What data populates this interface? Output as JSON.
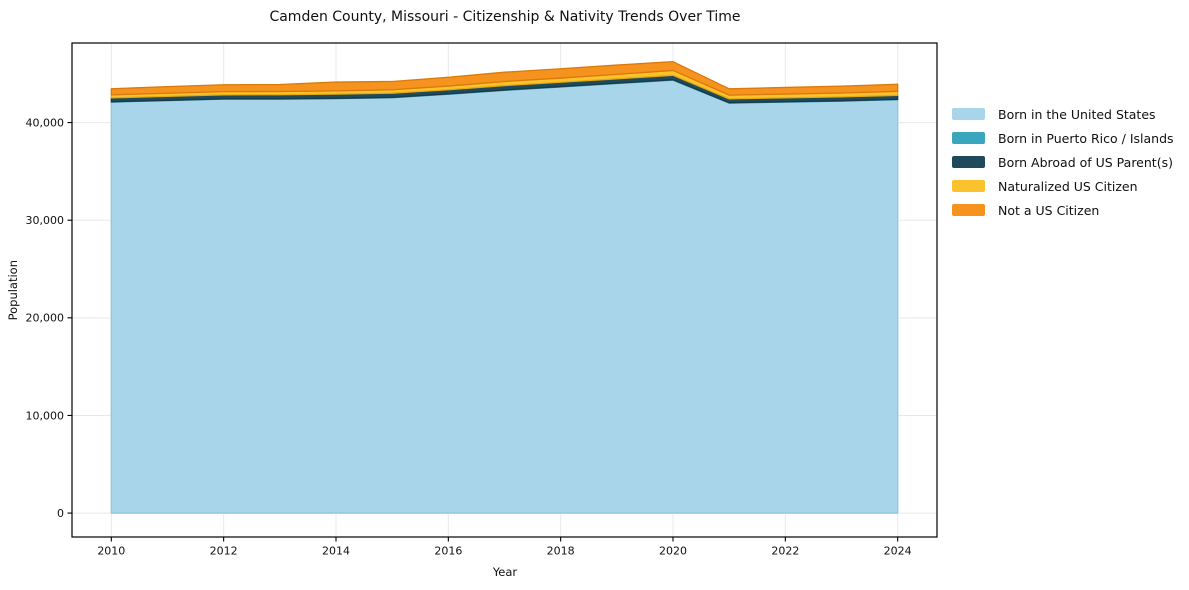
{
  "chart_data": {
    "type": "area",
    "stacked": true,
    "title": "Camden County, Missouri - Citizenship & Nativity Trends Over Time",
    "xlabel": "Year",
    "ylabel": "Population",
    "x": [
      2010,
      2011,
      2012,
      2013,
      2014,
      2015,
      2016,
      2017,
      2018,
      2019,
      2020,
      2021,
      2022,
      2023,
      2024
    ],
    "xticks": [
      2010,
      2012,
      2014,
      2016,
      2018,
      2020,
      2022,
      2024
    ],
    "xtick_labels": [
      "2010",
      "2012",
      "2014",
      "2016",
      "2018",
      "2020",
      "2022",
      "2024"
    ],
    "yticks": [
      0,
      10000,
      20000,
      30000,
      40000
    ],
    "ytick_labels": [
      "0",
      "10,000",
      "20,000",
      "30,000",
      "40,000"
    ],
    "xlim": [
      2009.3,
      2024.7
    ],
    "ylim": [
      -2450,
      48150
    ],
    "grid": true,
    "grid_color": "#e8e8e8",
    "axis_color": "#000000",
    "text_color": "#111111",
    "legend_position": "right-outside",
    "series": [
      {
        "name": "Born in the United States",
        "color": "#a8d5ea",
        "edge": "#8fc6e0",
        "values": [
          42100,
          42250,
          42400,
          42400,
          42450,
          42550,
          42900,
          43300,
          43650,
          44000,
          44350,
          42000,
          42100,
          42200,
          42350
        ]
      },
      {
        "name": "Born in Puerto Rico / Islands",
        "color": "#3aa6bd",
        "edge": "#2e8ba0",
        "values": [
          30,
          30,
          30,
          30,
          30,
          30,
          40,
          40,
          40,
          40,
          40,
          30,
          30,
          30,
          30
        ]
      },
      {
        "name": "Born Abroad of US Parent(s)",
        "color": "#1f4a5c",
        "edge": "#173a49",
        "values": [
          400,
          400,
          410,
          420,
          430,
          430,
          420,
          450,
          440,
          440,
          450,
          400,
          400,
          400,
          410
        ]
      },
      {
        "name": "Naturalized US Citizen",
        "color": "#fcc22d",
        "edge": "#e5a90f",
        "values": [
          310,
          320,
          330,
          330,
          340,
          350,
          380,
          420,
          430,
          460,
          500,
          380,
          390,
          400,
          410
        ]
      },
      {
        "name": "Not a US Citizen",
        "color": "#f6921e",
        "edge": "#da7a0a",
        "values": [
          620,
          680,
          700,
          720,
          900,
          850,
          900,
          950,
          950,
          950,
          900,
          650,
          680,
          700,
          720
        ]
      }
    ]
  }
}
